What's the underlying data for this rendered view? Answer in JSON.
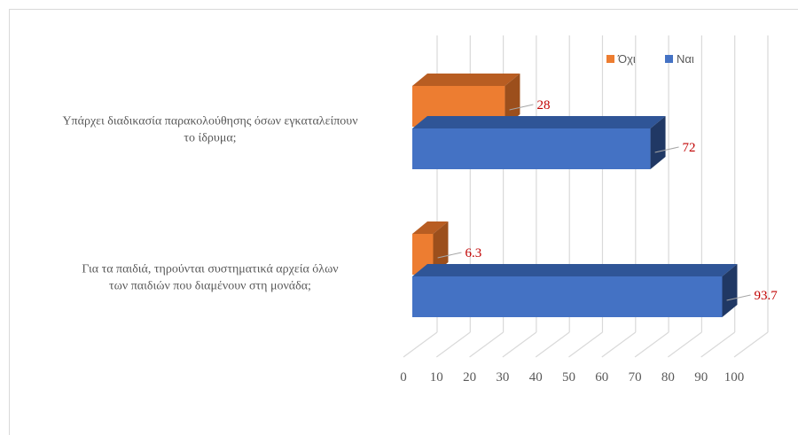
{
  "chart_data": {
    "type": "bar",
    "orientation": "horizontal",
    "style": "3d-clustered",
    "categories": [
      [
        "Υπάρχει διαδικασία παρακολούθησης όσων εγκαταλείπουν",
        "το ίδρυμα;"
      ],
      [
        "Για τα παιδιά, τηρούνται συστηματικά αρχεία όλων",
        "των παιδιών που διαμένουν στη μονάδα;"
      ]
    ],
    "series": [
      {
        "name": "Όχι",
        "values": [
          28,
          6.3
        ],
        "labels": [
          "28",
          "6.3"
        ],
        "color": "#ed7d31",
        "side_color": "#9c4f1c",
        "top_color": "#b85d22"
      },
      {
        "name": "Ναι",
        "values": [
          72,
          93.7
        ],
        "labels": [
          "72",
          "93.7"
        ],
        "color": "#4472c4",
        "side_color": "#203864",
        "top_color": "#2f5597"
      }
    ],
    "xlim": [
      0,
      100
    ],
    "xticks": [
      "0",
      "10",
      "20",
      "30",
      "40",
      "50",
      "60",
      "70",
      "80",
      "90",
      "100"
    ],
    "grid": true,
    "legend": "top-right",
    "title": "",
    "xlabel": "",
    "ylabel": ""
  }
}
